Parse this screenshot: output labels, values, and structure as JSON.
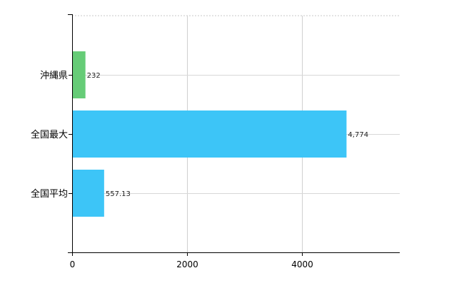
{
  "chart_data": {
    "type": "bar",
    "orientation": "horizontal",
    "categories": [
      "沖縄県",
      "全国最大",
      "全国平均"
    ],
    "values": [
      232,
      4774,
      557.13
    ],
    "value_labels": [
      "232",
      "4,774",
      "557.13"
    ],
    "colors": [
      "#66CC77",
      "#3DC5F7",
      "#3DC5F7"
    ],
    "xlim": [
      0,
      5700
    ],
    "xticks": [
      0,
      2000,
      4000
    ],
    "xtick_labels": [
      "0",
      "2000",
      "4000"
    ],
    "grid": true,
    "legend": "none"
  }
}
